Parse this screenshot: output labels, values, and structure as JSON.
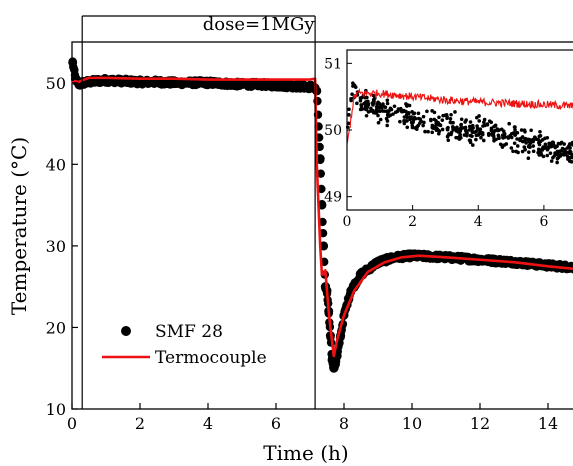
{
  "chart_data": {
    "type": "scatter",
    "title": "",
    "xlabel": "Time (h)",
    "ylabel": "Temperature (°C)",
    "xlim": [
      0,
      15
    ],
    "ylim": [
      10,
      55
    ],
    "xticks": [
      "0",
      "2",
      "4",
      "6",
      "8",
      "10",
      "12",
      "14"
    ],
    "yticks": [
      "10",
      "20",
      "30",
      "40",
      "50"
    ],
    "annotation": {
      "text": "dose=1MGy",
      "start_h": 0.3,
      "end_h": 7.15
    },
    "legend": {
      "position": "lower-left"
    },
    "series": [
      {
        "name": "SMF 28",
        "kind": "points",
        "color": "#000000",
        "x": [
          0.02,
          0.1,
          0.2,
          0.35,
          0.5,
          0.7,
          1,
          1.5,
          2,
          2.5,
          3,
          3.5,
          4,
          4.5,
          5,
          5.5,
          6,
          6.5,
          7,
          7.1,
          7.2,
          7.3,
          7.35,
          7.4,
          7.45,
          7.5,
          7.55,
          7.6,
          7.65,
          7.7,
          7.75,
          7.8,
          7.9,
          8,
          8.2,
          8.5,
          9,
          9.5,
          10,
          10.5,
          11,
          12,
          13,
          14,
          15
        ],
        "y": [
          52.5,
          50.5,
          49.8,
          50.0,
          50.1,
          50.2,
          50.3,
          50.2,
          50.1,
          50.1,
          50.0,
          50.0,
          50.0,
          49.9,
          49.8,
          49.8,
          49.7,
          49.6,
          49.5,
          49.5,
          49.0,
          40.7,
          35.0,
          30.0,
          25.0,
          24.5,
          22.0,
          19.0,
          16.0,
          15.0,
          15.5,
          16.5,
          19.0,
          21.5,
          24.5,
          26.5,
          28.0,
          28.6,
          28.8,
          28.7,
          28.6,
          28.3,
          28.0,
          27.6,
          27.3
        ]
      },
      {
        "name": "Termocouple",
        "kind": "line",
        "color": "#ee1111",
        "x": [
          0,
          0.1,
          0.2,
          0.3,
          0.5,
          1,
          2,
          3,
          4,
          5,
          6,
          7,
          7.15,
          7.2,
          7.3,
          7.35,
          7.4,
          7.45,
          7.55,
          7.6,
          7.7,
          7.8,
          8,
          8.3,
          8.7,
          9.2,
          9.7,
          10.2,
          11,
          12,
          13,
          14,
          15
        ],
        "y": [
          50.0,
          50.2,
          50.1,
          50.3,
          50.6,
          50.6,
          50.5,
          50.5,
          50.4,
          50.4,
          50.4,
          50.4,
          50.5,
          40.0,
          30.0,
          26.5,
          26.5,
          27.0,
          22.0,
          20.0,
          16.5,
          18.5,
          21.5,
          24.5,
          26.8,
          28.0,
          28.6,
          28.8,
          28.6,
          28.3,
          28.0,
          27.5,
          27.1
        ]
      }
    ],
    "inset": {
      "type": "scatter",
      "xlim": [
        0,
        7.1
      ],
      "ylim": [
        48.8,
        51.2
      ],
      "xticks": [
        "0",
        "2",
        "4",
        "6"
      ],
      "yticks": [
        "49",
        "50",
        "51"
      ],
      "series": [
        {
          "name": "SMF 28",
          "kind": "points",
          "color": "#000000",
          "trend_x": [
            0,
            0.15,
            0.3,
            0.5,
            1,
            2,
            3,
            4,
            5,
            5.5,
            6,
            6.5,
            7.1
          ],
          "trend_y": [
            49.9,
            50.55,
            50.5,
            50.4,
            50.3,
            50.15,
            50.05,
            50.0,
            49.9,
            49.8,
            49.75,
            49.7,
            49.6
          ],
          "spread": 0.13,
          "count": 470
        },
        {
          "name": "Termocouple",
          "kind": "line",
          "color": "#ee1111",
          "trend_x": [
            0,
            0.1,
            0.2,
            0.3,
            0.5,
            1,
            2,
            3,
            4,
            5,
            6,
            7.1
          ],
          "trend_y": [
            49.75,
            50.1,
            50.45,
            50.55,
            50.55,
            50.55,
            50.5,
            50.45,
            50.42,
            50.4,
            50.38,
            50.35
          ],
          "spread": 0.06,
          "count": 360
        }
      ]
    }
  }
}
